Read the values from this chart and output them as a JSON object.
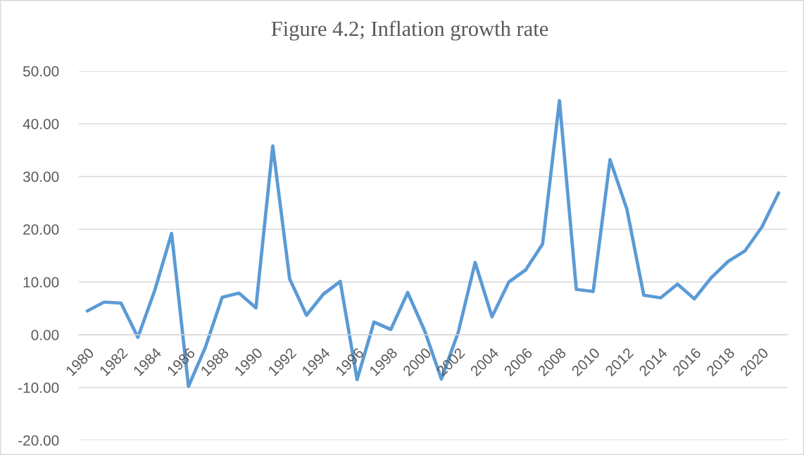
{
  "chart_data": {
    "type": "line",
    "title": "Figure 4.2; Inflation growth rate",
    "categories": [
      "1980",
      null,
      "1982",
      null,
      "1984",
      null,
      "1986",
      null,
      "1988",
      null,
      "1990",
      null,
      "1992",
      null,
      "1994",
      null,
      "1996",
      null,
      "1998",
      null,
      "2000",
      null,
      "2002",
      null,
      "2004",
      null,
      "2006",
      null,
      "2008",
      null,
      "2010",
      null,
      "2012",
      null,
      "2014",
      null,
      "2016",
      null,
      "2018",
      null,
      "2020",
      null
    ],
    "series": [
      {
        "color": "#5b9bd5",
        "values": [
          4.5,
          6.2,
          6.0,
          -0.5,
          8.4,
          19.2,
          -9.8,
          -2.4,
          7.1,
          7.9,
          5.1,
          35.8,
          10.6,
          3.7,
          7.7,
          10.1,
          -8.5,
          2.4,
          1.0,
          8.0,
          0.8,
          -8.4,
          0.5,
          13.7,
          3.4,
          10.0,
          12.3,
          17.2,
          44.4,
          8.6,
          8.2,
          33.2,
          23.8,
          7.5,
          7.0,
          9.6,
          6.8,
          10.8,
          13.9,
          15.9,
          20.4,
          26.9
        ]
      }
    ],
    "ylim": [
      -20,
      50
    ],
    "yticks": [
      {
        "value": -20,
        "label": "-20.00"
      },
      {
        "value": -10,
        "label": "-10.00"
      },
      {
        "value": 0,
        "label": "0.00"
      },
      {
        "value": 10,
        "label": "10.00"
      },
      {
        "value": 20,
        "label": "20.00"
      },
      {
        "value": 30,
        "label": "30.00"
      },
      {
        "value": 40,
        "label": "40.00"
      },
      {
        "value": 50,
        "label": "50.00"
      }
    ],
    "grid": "y",
    "marker": "none",
    "line_style": "solid"
  }
}
